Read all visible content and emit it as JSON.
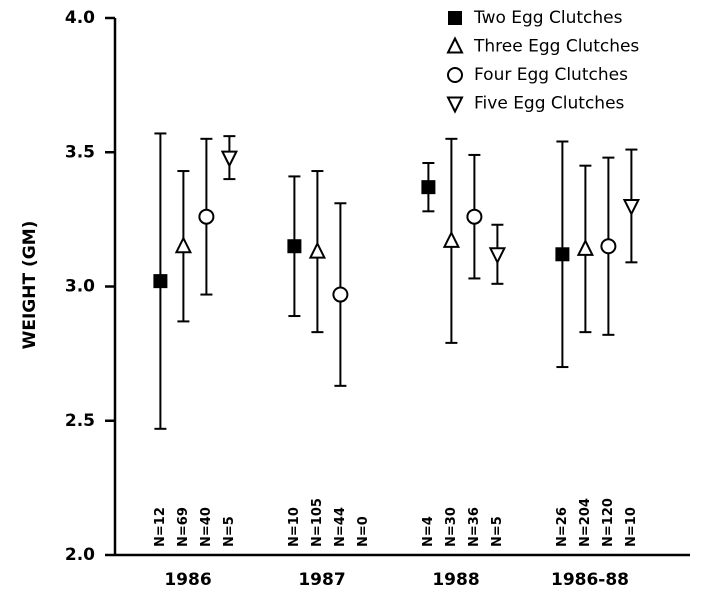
{
  "chart_data": {
    "type": "errorbar",
    "y_label": "WEIGHT (GM)",
    "categories": [
      "1986",
      "1987",
      "1988",
      "1986-88"
    ],
    "ylim": [
      2.0,
      4.0
    ],
    "yticks": [
      {
        "value": 2.0,
        "label": "2.0"
      },
      {
        "value": 2.5,
        "label": "2.5"
      },
      {
        "value": 3.0,
        "label": "3.0"
      },
      {
        "value": 3.5,
        "label": "3.5"
      },
      {
        "value": 4.0,
        "label": "4.0"
      }
    ],
    "legend": "top-right",
    "series": [
      {
        "name": "Two Egg Clutches",
        "marker": "square",
        "color": "#000000",
        "values": [
          3.02,
          3.15,
          3.37,
          3.12
        ],
        "errors": [
          0.55,
          0.26,
          0.09,
          0.42
        ],
        "n_labels": [
          "N=12",
          "N=10",
          "N=4",
          "N=26"
        ]
      },
      {
        "name": "Three Egg Clutches",
        "marker": "triangle-up",
        "color": "#000000",
        "values": [
          3.15,
          3.13,
          3.17,
          3.14
        ],
        "errors": [
          0.28,
          0.3,
          0.38,
          0.31
        ],
        "n_labels": [
          "N=69",
          "N=105",
          "N=30",
          "N=204"
        ]
      },
      {
        "name": "Four Egg Clutches",
        "marker": "circle",
        "color": "#000000",
        "values": [
          3.26,
          2.97,
          3.26,
          3.15
        ],
        "errors": [
          0.29,
          0.34,
          0.23,
          0.33
        ],
        "n_labels": [
          "N=40",
          "N=44",
          "N=36",
          "N=120"
        ]
      },
      {
        "name": "Five Egg Clutches",
        "marker": "triangle-down",
        "color": "#000000",
        "values": [
          3.48,
          null,
          3.12,
          3.3
        ],
        "errors": [
          0.08,
          null,
          0.11,
          0.21
        ],
        "n_labels": [
          "N=5",
          "N=0",
          "N=5",
          "N=10"
        ]
      }
    ]
  }
}
